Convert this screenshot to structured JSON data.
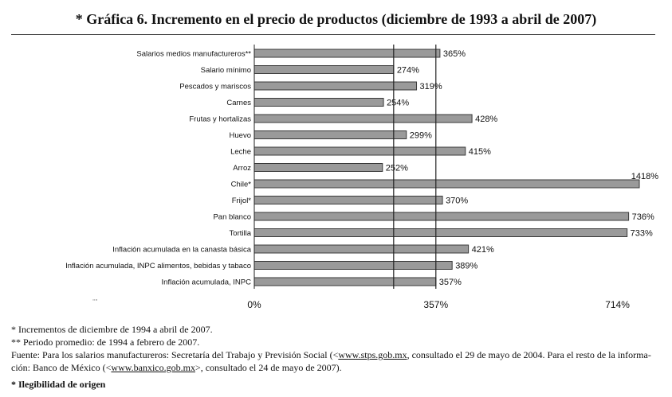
{
  "title": "* Gráfica 6. Incremento en el precio de productos (diciembre de 1993 a abril de 2007)",
  "chart_data": {
    "type": "bar",
    "orientation": "horizontal",
    "title": "* Gráfica 6. Incremento en el precio de productos (diciembre de 1993 a abril de 2007)",
    "categories": [
      "Salarios medios manufactureros**",
      "Salario mínimo",
      "Pescados y mariscos",
      "Carnes",
      "Frutas y hortalizas",
      "Huevo",
      "Leche",
      "Arroz",
      "Chile*",
      "Frijol*",
      "Pan blanco",
      "Tortilla",
      "Inflación acumulada en la canasta básica",
      "Inflación acumulada, INPC alimentos, bebidas y tabaco",
      "Inflación acumulada, INPC"
    ],
    "values": [
      365,
      274,
      319,
      254,
      428,
      299,
      415,
      252,
      1418,
      370,
      736,
      733,
      421,
      389,
      357
    ],
    "value_labels": [
      "365%",
      "274%",
      "319%",
      "254%",
      "428%",
      "299%",
      "415%",
      "252%",
      "1418%",
      "370%",
      "736%",
      "733%",
      "421%",
      "389%",
      "357%"
    ],
    "x_ticks": [
      0,
      357,
      714
    ],
    "x_tick_labels": [
      "0%",
      "357%",
      "714%"
    ],
    "xlim": [
      0,
      757
    ],
    "reference_lines": [
      274,
      357
    ],
    "bar_color": "#9a9a9a",
    "bar_edge_color": "#3a3a3a",
    "grid": false
  },
  "notes": {
    "line1": "* Incrementos de diciembre de 1994 a abril de 2007.",
    "line2": "** Periodo promedio: de 1994 a febrero de 2007.",
    "line3_a": "Fuente: Para los salarios manufactureros: Secretaría del Trabajo y Previsión Social (<",
    "line3_link1": "www.stps.gob.mx",
    "line3_b": ", consultado el 29 de mayo de 2004. Para el resto de la informa-",
    "line4_a": "ción: Banco de México (<",
    "line4_link2": "www.banxico.gob.mx",
    "line4_b": ">, consultado el 24 de mayo de 2007)."
  },
  "origin_note": "* Ilegibilidad de origen",
  "stray_mark": "\"\""
}
